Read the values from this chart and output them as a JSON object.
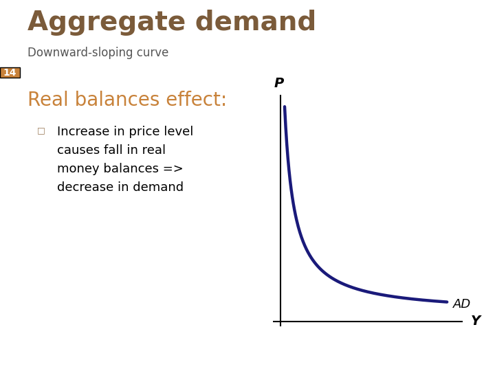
{
  "title": "Aggregate demand",
  "subtitle": "Downward-sloping curve",
  "slide_number": "14",
  "section_heading": "Real balances effect:",
  "bullet_line1": "Increase in price level",
  "bullet_line2": "causes fall in real",
  "bullet_line3": "money balances =>",
  "bullet_line4": "decrease in demand",
  "curve_label": "AD",
  "x_axis_label": "Y",
  "y_axis_label": "P",
  "title_color": "#7B5B3A",
  "subtitle_color": "#555555",
  "heading_color": "#C8823A",
  "curve_color": "#1a1a7a",
  "axes_color": "#000000",
  "slide_number_bg": "#C8823A",
  "header_bar_color": "#91B8D0",
  "background_color": "#ffffff",
  "title_fontsize": 28,
  "subtitle_fontsize": 12,
  "heading_fontsize": 20,
  "bullet_fontsize": 13,
  "curve_linewidth": 3.2
}
